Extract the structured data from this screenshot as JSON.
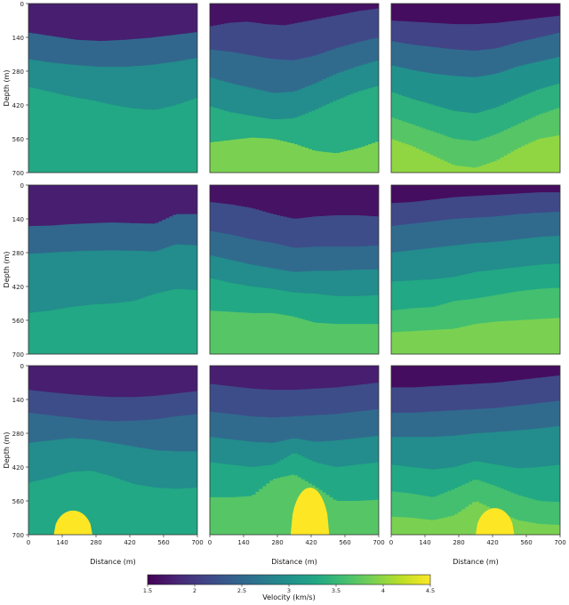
{
  "chart_data": {
    "type": "heatmap",
    "grid_layout": "3x3",
    "xlabel": "Distance (m)",
    "ylabel": "Depth (m)",
    "x_ticks": [
      "0",
      "140",
      "280",
      "420",
      "560",
      "700"
    ],
    "y_ticks": [
      "0",
      "140",
      "280",
      "420",
      "560",
      "700"
    ],
    "xlim": [
      0,
      700
    ],
    "ylim": [
      700,
      0
    ],
    "colorbar": {
      "label": "Velocity (km/s)",
      "range": [
        1.5,
        4.5
      ],
      "ticks": [
        "1.5",
        "2",
        "2.5",
        "3",
        "3.5",
        "4",
        "4.5"
      ],
      "colormap": [
        "#440154",
        "#482475",
        "#414487",
        "#355f8d",
        "#2a788e",
        "#21918c",
        "#22a884",
        "#44bf70",
        "#7ad151",
        "#bddf26",
        "#fde725"
      ]
    },
    "panels": [
      {
        "id": "r1c1",
        "structure": "folded layers",
        "layers": [
          {
            "velocity": 1.75,
            "interface_depths": [
              1,
              1
            ]
          },
          {
            "velocity": 2.5,
            "interface_depths": [
              120,
              135,
              150,
              155,
              150,
              142,
              130,
              118
            ]
          },
          {
            "velocity": 2.95,
            "interface_depths": [
              230,
              245,
              255,
              262,
              262,
              255,
              242,
              225
            ]
          },
          {
            "velocity": 3.3,
            "interface_depths": [
              345,
              365,
              385,
              400,
              420,
              435,
              440,
              420,
              390
            ]
          },
          {
            "velocity": 3.7,
            "interface_depths": [
              700,
              700
            ]
          }
        ]
      },
      {
        "id": "r1c2",
        "structure": "folded layers",
        "layers": [
          {
            "velocity": 1.65,
            "interface_depths": [
              1,
              1
            ]
          },
          {
            "velocity": 2.15,
            "interface_depths": [
              95,
              80,
              75,
              85,
              90,
              75,
              60,
              45,
              30,
              20
            ]
          },
          {
            "velocity": 2.55,
            "interface_depths": [
              190,
              200,
              215,
              230,
              235,
              215,
              185,
              160,
              140
            ]
          },
          {
            "velocity": 2.95,
            "interface_depths": [
              305,
              330,
              350,
              370,
              365,
              330,
              290,
              260,
              235
            ]
          },
          {
            "velocity": 3.35,
            "interface_depths": [
              425,
              450,
              465,
              480,
              475,
              440,
              400,
              365,
              340
            ]
          },
          {
            "velocity": 3.9,
            "interface_depths": [
              575,
              565,
              555,
              560,
              580,
              610,
              620,
              600,
              570
            ]
          },
          {
            "velocity": 4.2,
            "interface_depths": [
              700,
              700
            ]
          }
        ]
      },
      {
        "id": "r1c3",
        "structure": "folded layers",
        "layers": [
          {
            "velocity": 1.6,
            "interface_depths": [
              1,
              1
            ]
          },
          {
            "velocity": 2.1,
            "interface_depths": [
              70,
              75,
              80,
              85,
              85,
              80,
              70,
              60,
              50
            ]
          },
          {
            "velocity": 2.55,
            "interface_depths": [
              155,
              170,
              180,
              190,
              195,
              185,
              160,
              140,
              120
            ]
          },
          {
            "velocity": 3.0,
            "interface_depths": [
              255,
              275,
              290,
              300,
              305,
              290,
              260,
              240,
              220
            ]
          },
          {
            "velocity": 3.4,
            "interface_depths": [
              365,
              395,
              420,
              445,
              455,
              430,
              390,
              355,
              330
            ]
          },
          {
            "velocity": 3.7,
            "interface_depths": [
              470,
              500,
              530,
              560,
              570,
              540,
              500,
              460,
              430
            ]
          },
          {
            "velocity": 4.0,
            "interface_depths": [
              560,
              590,
              630,
              670,
              680,
              650,
              600,
              560,
              545
            ]
          },
          {
            "velocity": 4.3,
            "interface_depths": [
              700,
              700
            ]
          }
        ]
      },
      {
        "id": "r2c1",
        "structure": "faulted layers",
        "layers": [
          {
            "velocity": 1.75,
            "interface_depths": [
              1,
              1
            ]
          },
          {
            "velocity": 2.5,
            "interface_depths": [
              170,
              168,
              162,
              158,
              155,
              158,
              160,
              120,
              120
            ]
          },
          {
            "velocity": 2.95,
            "interface_depths": [
              285,
              280,
              275,
              272,
              270,
              272,
              275,
              245,
              250
            ]
          },
          {
            "velocity": 3.3,
            "interface_depths": [
              530,
              520,
              505,
              495,
              490,
              480,
              450,
              430,
              435
            ]
          },
          {
            "velocity": 3.7,
            "interface_depths": [
              700,
              700
            ]
          }
        ]
      },
      {
        "id": "r2c2",
        "structure": "faulted layers",
        "layers": [
          {
            "velocity": 1.65,
            "interface_depths": [
              1,
              1
            ]
          },
          {
            "velocity": 2.2,
            "interface_depths": [
              70,
              80,
              95,
              120,
              140,
              130,
              125,
              125,
              130
            ]
          },
          {
            "velocity": 2.55,
            "interface_depths": [
              190,
              205,
              225,
              240,
              260,
              255,
              255,
              255,
              250
            ]
          },
          {
            "velocity": 2.95,
            "interface_depths": [
              290,
              310,
              330,
              345,
              360,
              355,
              355,
              350,
              350
            ]
          },
          {
            "velocity": 3.3,
            "interface_depths": [
              385,
              405,
              420,
              430,
              445,
              450,
              460,
              460,
              455
            ]
          },
          {
            "velocity": 3.7,
            "interface_depths": [
              520,
              525,
              530,
              530,
              545,
              570,
              575,
              575,
              575
            ]
          },
          {
            "velocity": 3.9,
            "interface_depths": [
              700,
              700
            ]
          }
        ]
      },
      {
        "id": "r2c3",
        "structure": "faulted layers",
        "layers": [
          {
            "velocity": 1.6,
            "interface_depths": [
              1,
              1
            ]
          },
          {
            "velocity": 2.15,
            "interface_depths": [
              75,
              70,
              60,
              50,
              45,
              40,
              35,
              30,
              30
            ]
          },
          {
            "velocity": 2.55,
            "interface_depths": [
              170,
              160,
              150,
              140,
              135,
              130,
              120,
              115,
              110
            ]
          },
          {
            "velocity": 2.95,
            "interface_depths": [
              280,
              270,
              260,
              250,
              240,
              235,
              225,
              215,
              210
            ]
          },
          {
            "velocity": 3.3,
            "interface_depths": [
              400,
              395,
              390,
              380,
              360,
              350,
              340,
              330,
              325
            ]
          },
          {
            "velocity": 3.6,
            "interface_depths": [
              520,
              510,
              505,
              480,
              470,
              455,
              440,
              430,
              425
            ]
          },
          {
            "velocity": 3.9,
            "interface_depths": [
              610,
              605,
              600,
              595,
              575,
              565,
              560,
              555,
              550
            ]
          },
          {
            "velocity": 4.1,
            "interface_depths": [
              700,
              700
            ]
          }
        ]
      },
      {
        "id": "r3c1",
        "structure": "layers with salt dome",
        "layers": [
          {
            "velocity": 1.75,
            "interface_depths": [
              1,
              1
            ]
          },
          {
            "velocity": 2.2,
            "interface_depths": [
              100,
              110,
              118,
              125,
              130,
              130,
              125,
              115,
              105
            ]
          },
          {
            "velocity": 2.55,
            "interface_depths": [
              195,
              205,
              215,
              225,
              230,
              228,
              222,
              210,
              200
            ]
          },
          {
            "velocity": 2.95,
            "interface_depths": [
              320,
              310,
              300,
              305,
              320,
              335,
              350,
              355,
              355
            ]
          },
          {
            "velocity": 3.3,
            "interface_depths": [
              485,
              465,
              440,
              435,
              460,
              490,
              505,
              510,
              505
            ]
          },
          {
            "velocity": 3.7,
            "interface_depths": [
              700,
              700
            ]
          }
        ],
        "dome": {
          "velocity": 4.5,
          "center_x": 185,
          "base_half_width": 80,
          "top_depth": 600
        }
      },
      {
        "id": "r3c2",
        "structure": "layers with salt dome",
        "layers": [
          {
            "velocity": 1.75,
            "interface_depths": [
              1,
              1
            ]
          },
          {
            "velocity": 2.2,
            "interface_depths": [
              75,
              85,
              95,
              100,
              100,
              95,
              90,
              80,
              70
            ]
          },
          {
            "velocity": 2.55,
            "interface_depths": [
              190,
              200,
              210,
              215,
              210,
              205,
              200,
              190,
              180
            ]
          },
          {
            "velocity": 2.95,
            "interface_depths": [
              295,
              305,
              315,
              320,
              300,
              315,
              310,
              300,
              290
            ]
          },
          {
            "velocity": 3.3,
            "interface_depths": [
              400,
              410,
              420,
              410,
              360,
              400,
              420,
              410,
              400
            ]
          },
          {
            "velocity": 3.7,
            "interface_depths": [
              545,
              545,
              540,
              470,
              450,
              500,
              560,
              560,
              555
            ]
          },
          {
            "velocity": 3.9,
            "interface_depths": [
              700,
              700
            ]
          }
        ],
        "dome": {
          "velocity": 4.5,
          "center_x": 415,
          "base_half_width": 80,
          "top_depth": 505
        }
      },
      {
        "id": "r3c3",
        "structure": "layers with salt dome",
        "layers": [
          {
            "velocity": 1.6,
            "interface_depths": [
              1,
              1
            ]
          },
          {
            "velocity": 2.15,
            "interface_depths": [
              90,
              90,
              85,
              80,
              75,
              70,
              60,
              50,
              40
            ]
          },
          {
            "velocity": 2.55,
            "interface_depths": [
              195,
              195,
              190,
              185,
              180,
              175,
              165,
              155,
              145
            ]
          },
          {
            "velocity": 2.95,
            "interface_depths": [
              295,
              295,
              295,
              290,
              280,
              275,
              268,
              260,
              250
            ]
          },
          {
            "velocity": 3.3,
            "interface_depths": [
              410,
              420,
              430,
              420,
              395,
              410,
              425,
              420,
              410
            ]
          },
          {
            "velocity": 3.6,
            "interface_depths": [
              520,
              530,
              545,
              510,
              470,
              500,
              535,
              560,
              565
            ]
          },
          {
            "velocity": 3.9,
            "interface_depths": [
              625,
              630,
              640,
              620,
              560,
              600,
              640,
              655,
              660
            ]
          },
          {
            "velocity": 4.1,
            "interface_depths": [
              700,
              700
            ]
          }
        ],
        "dome": {
          "velocity": 4.5,
          "center_x": 430,
          "base_half_width": 80,
          "top_depth": 590
        }
      }
    ]
  }
}
